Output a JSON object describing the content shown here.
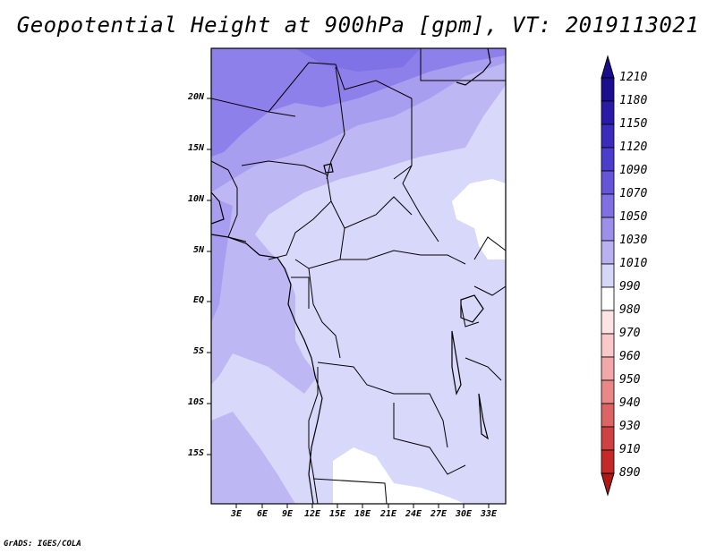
{
  "title": "Geopotential Height at 900hPa [gpm], VT: 2019113021",
  "credit": "GrADS: IGES/COLA",
  "map": {
    "lat_labels": [
      "20N",
      "15N",
      "10N",
      "5N",
      "EQ",
      "5S",
      "10S",
      "15S"
    ],
    "lon_labels": [
      "3E",
      "6E",
      "9E",
      "12E",
      "15E",
      "18E",
      "21E",
      "24E",
      "27E",
      "30E",
      "33E"
    ]
  },
  "colorbar": {
    "levels": [
      "1210",
      "1180",
      "1150",
      "1120",
      "1090",
      "1070",
      "1050",
      "1030",
      "1010",
      "990",
      "980",
      "970",
      "960",
      "950",
      "940",
      "930",
      "910",
      "890"
    ],
    "colors": [
      "#1a0d8f",
      "#2a1aa6",
      "#3b2bbc",
      "#4b3ecc",
      "#6655d8",
      "#8070e2",
      "#9c90eb",
      "#b8b2f0",
      "#d6d6f7",
      "#ffffff",
      "#fde3e3",
      "#f9c8c8",
      "#f2a8a8",
      "#e88888",
      "#dc6464",
      "#d04242",
      "#c42a2a",
      "#b01818"
    ]
  },
  "colors": {
    "h1090": "#8d80ea",
    "h1070": "#a89ef0",
    "h1050": "#bdb7f3",
    "h1030": "#d8d8fa",
    "h1010": "#ffffff"
  }
}
